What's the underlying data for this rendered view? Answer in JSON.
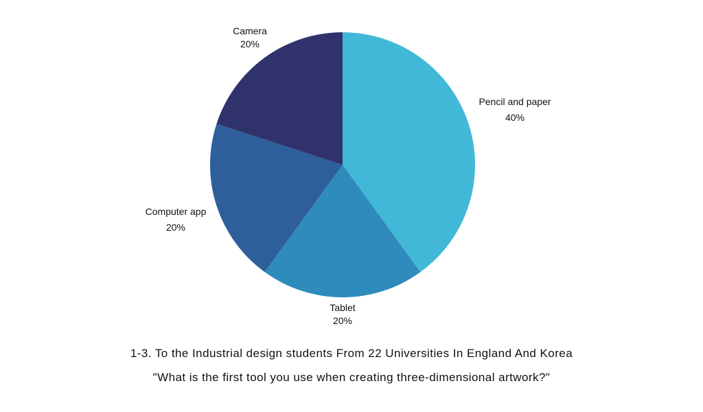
{
  "chart_data": {
    "type": "pie",
    "start": "top",
    "direction": "clockwise",
    "slices": [
      {
        "label": "Pencil and paper",
        "value": 40,
        "value_label": "40%",
        "color": "#42B8D8"
      },
      {
        "label": "Tablet",
        "value": 20,
        "value_label": "20%",
        "color": "#2E8BBB"
      },
      {
        "label": "Computer app",
        "value": 20,
        "value_label": "20%",
        "color": "#2E5F9A"
      },
      {
        "label": "Camera",
        "value": 20,
        "value_label": "20%",
        "color": "#30336B"
      }
    ],
    "caption": {
      "line1": "1-3. To the Industrial design students From 22 Universities In England And Korea",
      "line2": "\"What is the first tool you use when creating three-dimensional artwork?\""
    }
  }
}
